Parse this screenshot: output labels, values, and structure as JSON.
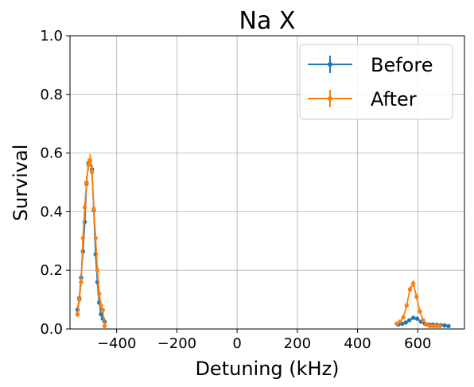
{
  "chart_data": {
    "type": "line",
    "title": "Na X",
    "xlabel": "Detuning (kHz)",
    "ylabel": "Survival",
    "xlim": [
      -555,
      755
    ],
    "ylim": [
      0,
      1.0
    ],
    "xticks": [
      -400,
      -200,
      0,
      200,
      400,
      600
    ],
    "xtick_labels": [
      "−400",
      "−200",
      "0",
      "200",
      "400",
      "600"
    ],
    "yticks": [
      0.0,
      0.2,
      0.4,
      0.6,
      0.8,
      1.0
    ],
    "ytick_labels": [
      "0.0",
      "0.2",
      "0.4",
      "0.6",
      "0.8",
      "1.0"
    ],
    "grid": true,
    "legend_position": "top-right",
    "series": [
      {
        "name": "Before",
        "color": "#1f77b4",
        "segments": [
          {
            "x": [
              -530,
              -524,
              -518,
              -512,
              -506,
              -500,
              -494,
              -488,
              -482,
              -476,
              -470,
              -464,
              -458,
              -452,
              -446,
              -440
            ],
            "y": [
              0.065,
              0.105,
              0.175,
              0.265,
              0.365,
              0.495,
              0.565,
              0.575,
              0.545,
              0.405,
              0.255,
              0.16,
              0.09,
              0.05,
              0.035,
              0.025
            ],
            "err": [
              0.01,
              0.01,
              0.012,
              0.012,
              0.012,
              0.015,
              0.015,
              0.015,
              0.015,
              0.014,
              0.012,
              0.01,
              0.008,
              0.006,
              0.005,
              0.004
            ]
          },
          {
            "x": [
              535,
              548,
              560,
              572,
              585,
              598,
              611,
              624,
              637,
              650,
              663,
              676,
              689,
              702
            ],
            "y": [
              0.015,
              0.018,
              0.022,
              0.03,
              0.038,
              0.035,
              0.025,
              0.018,
              0.015,
              0.015,
              0.014,
              0.013,
              0.012,
              0.01
            ],
            "err": [
              0.003,
              0.003,
              0.004,
              0.005,
              0.005,
              0.005,
              0.004,
              0.003,
              0.003,
              0.003,
              0.003,
              0.003,
              0.003,
              0.003
            ]
          }
        ]
      },
      {
        "name": "After",
        "color": "#ff7f0e",
        "segments": [
          {
            "x": [
              -530,
              -524,
              -518,
              -512,
              -506,
              -500,
              -494,
              -488,
              -482,
              -476,
              -470,
              -464,
              -458,
              -452,
              -446,
              -440
            ],
            "y": [
              0.05,
              0.1,
              0.16,
              0.31,
              0.415,
              0.5,
              0.56,
              0.575,
              0.535,
              0.41,
              0.31,
              0.2,
              0.12,
              0.08,
              0.065,
              0.01
            ],
            "err": [
              0.01,
              0.012,
              0.014,
              0.016,
              0.018,
              0.02,
              0.022,
              0.022,
              0.02,
              0.018,
              0.016,
              0.014,
              0.012,
              0.01,
              0.008,
              0.004
            ]
          },
          {
            "x": [
              530,
              541,
              552,
              563,
              574,
              585,
              596,
              607,
              618,
              629,
              640,
              651,
              662,
              673
            ],
            "y": [
              0.018,
              0.025,
              0.04,
              0.08,
              0.135,
              0.155,
              0.11,
              0.06,
              0.03,
              0.015,
              0.01,
              0.01,
              0.01,
              0.01
            ],
            "err": [
              0.004,
              0.005,
              0.006,
              0.008,
              0.01,
              0.012,
              0.01,
              0.008,
              0.006,
              0.004,
              0.003,
              0.003,
              0.003,
              0.003
            ]
          }
        ]
      }
    ]
  }
}
